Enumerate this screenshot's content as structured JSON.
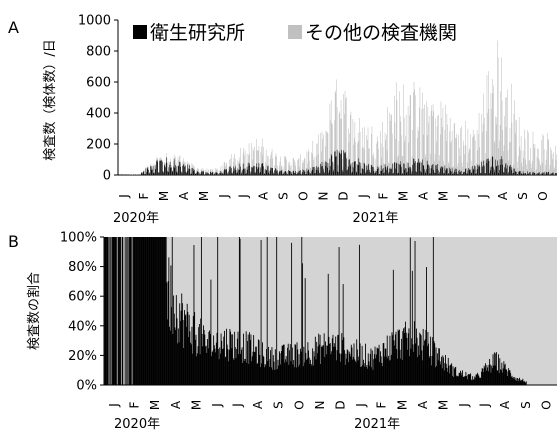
{
  "chart_data": [
    {
      "panel": "A",
      "type": "bar",
      "stacked": true,
      "ylabel": "検査数（検体数）/日",
      "ylim": [
        0,
        1000
      ],
      "yticks": [
        "0",
        "200",
        "400",
        "600",
        "800",
        "1000"
      ],
      "months": [
        "J",
        "F",
        "M",
        "A",
        "M",
        "J",
        "J",
        "A",
        "S",
        "O",
        "N",
        "D",
        "J",
        "F",
        "M",
        "A",
        "M",
        "J",
        "J",
        "A",
        "S",
        "O"
      ],
      "years": [
        "2020年",
        "2021年"
      ],
      "legend": {
        "placement": "top",
        "entries": [
          "衛生研究所",
          "その他の検査機関"
        ]
      },
      "series_colors": [
        "#000000",
        "#c0c0c0"
      ],
      "approx_monthly_peaks": {
        "衛生研究所": [
          0,
          0,
          120,
          110,
          30,
          20,
          80,
          90,
          40,
          30,
          60,
          180,
          120,
          60,
          90,
          110,
          80,
          40,
          70,
          150,
          30,
          20
        ],
        "その他の検査機関": [
          0,
          5,
          20,
          60,
          20,
          30,
          120,
          180,
          110,
          90,
          200,
          530,
          300,
          260,
          560,
          500,
          520,
          320,
          320,
          940,
          380,
          260
        ]
      }
    },
    {
      "panel": "B",
      "type": "area",
      "stacked": true,
      "percent": true,
      "ylabel": "検査数の割合",
      "ylim": [
        0,
        100
      ],
      "yticks": [
        "0%",
        "20%",
        "40%",
        "60%",
        "80%",
        "100%"
      ],
      "months": [
        "J",
        "F",
        "M",
        "A",
        "M",
        "J",
        "J",
        "A",
        "S",
        "O",
        "N",
        "D",
        "J",
        "F",
        "M",
        "A",
        "M",
        "J",
        "J",
        "A",
        "S",
        "O"
      ],
      "years": [
        "2020年",
        "2021年"
      ],
      "series_colors": [
        "#000000",
        "#d4d4d4"
      ],
      "approx_monthly_share_衛生研究所_pct": [
        100,
        100,
        100,
        70,
        45,
        30,
        32,
        28,
        20,
        22,
        25,
        30,
        25,
        20,
        30,
        35,
        25,
        10,
        5,
        18,
        5,
        0
      ]
    }
  ]
}
